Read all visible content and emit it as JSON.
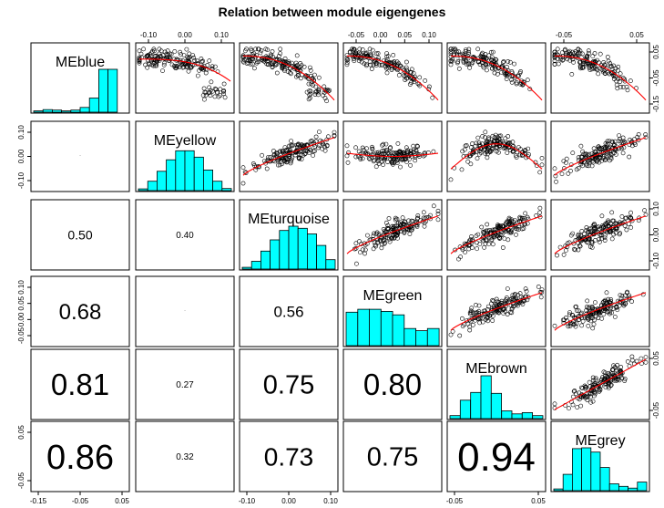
{
  "chart_data": {
    "type": "scatter",
    "title": "Relation between module eigengenes",
    "variables": [
      "MEblue",
      "MEyellow",
      "MEturquoise",
      "MEgreen",
      "MEbrown",
      "MEgrey"
    ],
    "lower_panel": "correlation",
    "upper_panel": "scatter with red smoother",
    "diagonal_panel": "histogram",
    "correlations": [
      {
        "row": "MEturquoise",
        "col": "MEblue",
        "value": "0.50"
      },
      {
        "row": "MEturquoise",
        "col": "MEyellow",
        "value": "0.40"
      },
      {
        "row": "MEgreen",
        "col": "MEblue",
        "value": "0.68"
      },
      {
        "row": "MEgreen",
        "col": "MEturquoise",
        "value": "0.56"
      },
      {
        "row": "MEbrown",
        "col": "MEblue",
        "value": "0.81"
      },
      {
        "row": "MEbrown",
        "col": "MEyellow",
        "value": "0.27"
      },
      {
        "row": "MEbrown",
        "col": "MEturquoise",
        "value": "0.75"
      },
      {
        "row": "MEbrown",
        "col": "MEgreen",
        "value": "0.80"
      },
      {
        "row": "MEgrey",
        "col": "MEblue",
        "value": "0.86"
      },
      {
        "row": "MEgrey",
        "col": "MEyellow",
        "value": "0.32"
      },
      {
        "row": "MEgrey",
        "col": "MEturquoise",
        "value": "0.73"
      },
      {
        "row": "MEgrey",
        "col": "MEgreen",
        "value": "0.75"
      },
      {
        "row": "MEgrey",
        "col": "MEbrown",
        "value": "0.94"
      }
    ],
    "histograms": {
      "MEblue": [
        0.03,
        0.06,
        0.05,
        0.03,
        0.05,
        0.11,
        0.33,
        1.0,
        1.0,
        0.0
      ],
      "MEyellow": [
        0.04,
        0.22,
        0.45,
        0.72,
        0.93,
        0.93,
        0.78,
        0.48,
        0.22,
        0.05
      ],
      "MEturquoise": [
        0.04,
        0.18,
        0.42,
        0.68,
        0.9,
        1.0,
        0.95,
        0.82,
        0.55,
        0.22
      ],
      "MEgreen": [
        0.78,
        0.85,
        0.85,
        0.8,
        0.72,
        0.4,
        0.35,
        0.4
      ],
      "MEbrown": [
        0.07,
        0.43,
        0.61,
        1.0,
        0.59,
        0.18,
        0.11,
        0.14,
        0.07
      ],
      "MEgrey": [
        0.04,
        0.38,
        0.98,
        1.0,
        0.9,
        0.54,
        0.16,
        0.1,
        0.06,
        0.2
      ]
    },
    "axis_ticks": {
      "MEblue": [
        "-0.15",
        "-0.05",
        "0.05"
      ],
      "MEyellow": [
        "-0.10",
        "0.00",
        "0.10"
      ],
      "MEturquoise": [
        "-0.10",
        "0.00",
        "0.10"
      ],
      "MEgreen": [
        "-0.05",
        "0.00",
        "0.05",
        "0.10"
      ],
      "MEbrown": [
        "-0.05",
        "0.05"
      ],
      "MEgrey": [
        "-0.05",
        "0.05"
      ]
    },
    "axis_ticks_right": {
      "MEblue": [
        "0.05",
        "-0.05",
        "-0.15"
      ],
      "MEturquoise": [
        "0.10",
        "0.00",
        "-0.10"
      ],
      "MEbrown": [
        "0.05",
        "-0.05"
      ]
    },
    "histogram_fill": "#00ffff",
    "point_color": "#000000",
    "smoother_color": "#ff0000"
  }
}
